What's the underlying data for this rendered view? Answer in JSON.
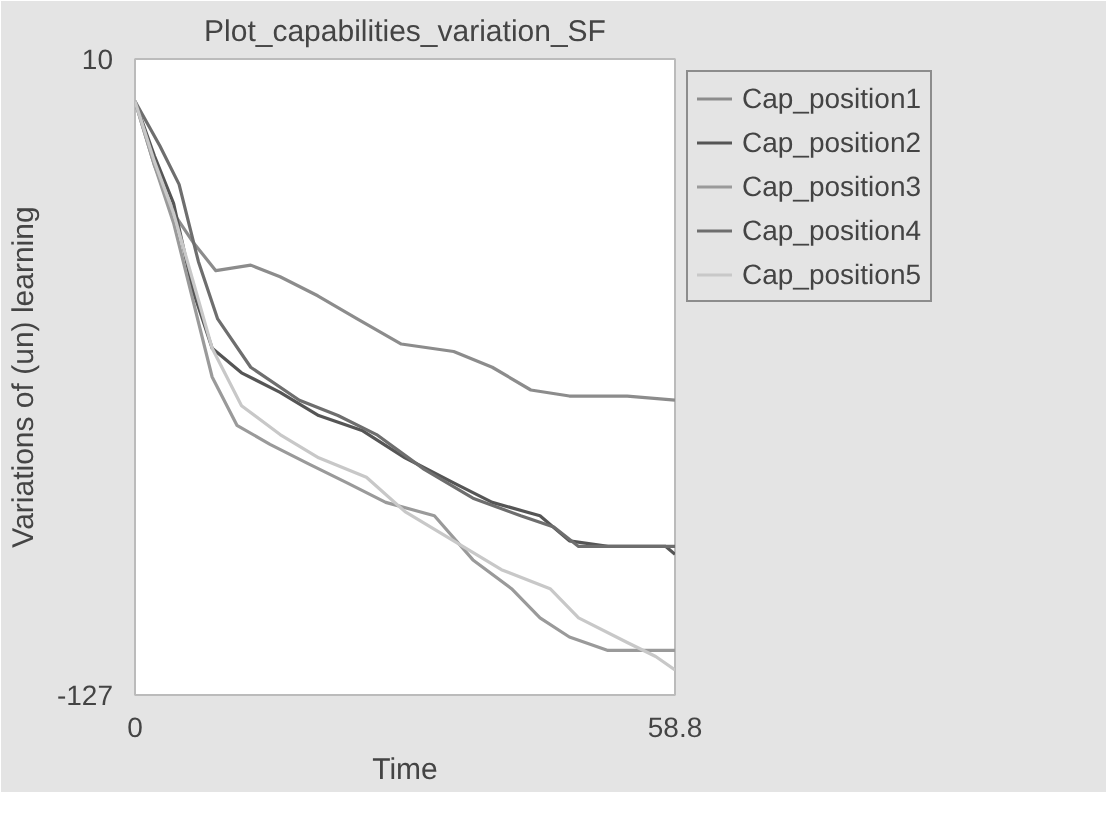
{
  "chart_data": {
    "type": "line",
    "title": "Plot_capabilities_variation_SF",
    "xlabel": "Time",
    "ylabel": "Variations of (un) learning",
    "xlim": [
      0,
      58.8
    ],
    "xticks": [
      0,
      58.8
    ],
    "ylim": [
      -127,
      10
    ],
    "yticks": [
      10,
      -127
    ],
    "legend": "right",
    "line_style": "solid",
    "marker": "none",
    "series": [
      {
        "name": "Cap_position1",
        "color": "#8c8c8c",
        "x": [
          0,
          2.1,
          4.2,
          6.3,
          8.8,
          12.6,
          15.8,
          19.9,
          24.2,
          29.0,
          34.7,
          38.9,
          43.1,
          47.3,
          53.6,
          58.8
        ],
        "values": [
          0.9,
          -12.8,
          -23.2,
          -29.4,
          -35.6,
          -34.4,
          -36.9,
          -41.0,
          -46.0,
          -51.4,
          -53.0,
          -56.4,
          -61.3,
          -62.6,
          -62.6,
          -63.5
        ]
      },
      {
        "name": "Cap_position2",
        "color": "#555555",
        "x": [
          0,
          2.1,
          4.2,
          6.3,
          8.4,
          11.6,
          15.8,
          20.0,
          24.8,
          29.4,
          34.7,
          38.9,
          44.1,
          47.3,
          51.5,
          57.8,
          58.8
        ],
        "values": [
          0.9,
          -10.8,
          -21.1,
          -39.8,
          -52.3,
          -57.6,
          -61.8,
          -66.8,
          -70.1,
          -75.9,
          -81.3,
          -85.5,
          -88.4,
          -93.8,
          -95.0,
          -95.0,
          -96.7
        ]
      },
      {
        "name": "Cap_position3",
        "color": "#9a9a9a",
        "x": [
          0,
          2.1,
          4.2,
          6.3,
          8.4,
          11.1,
          14.7,
          18.9,
          23.1,
          27.3,
          32.6,
          36.8,
          41.0,
          44.1,
          47.3,
          51.5,
          56.7,
          58.8
        ],
        "values": [
          0.9,
          -12.8,
          -25.3,
          -41.9,
          -58.5,
          -68.9,
          -73.0,
          -77.2,
          -81.3,
          -85.5,
          -88.4,
          -97.9,
          -104.1,
          -110.4,
          -114.5,
          -117.4,
          -117.4,
          -117.4
        ]
      },
      {
        "name": "Cap_position4",
        "color": "#6e6e6e",
        "x": [
          0,
          2.7,
          4.8,
          6.9,
          9.0,
          12.6,
          17.9,
          22.1,
          26.3,
          31.5,
          36.8,
          42.0,
          45.6,
          48.3,
          55.7,
          58.8
        ],
        "values": [
          0.9,
          -8.7,
          -17.0,
          -33.6,
          -46.0,
          -56.4,
          -63.5,
          -66.8,
          -70.9,
          -78.4,
          -84.6,
          -88.4,
          -90.8,
          -95.0,
          -95.0,
          -95.0
        ]
      },
      {
        "name": "Cap_position5",
        "color": "#c8c8c8",
        "x": [
          0,
          2.1,
          4.2,
          6.3,
          8.4,
          11.6,
          15.8,
          20.0,
          25.2,
          29.4,
          34.7,
          39.9,
          45.2,
          48.3,
          53.6,
          56.7,
          58.8
        ],
        "values": [
          0.9,
          -12.0,
          -23.2,
          -37.7,
          -52.3,
          -64.7,
          -70.9,
          -75.9,
          -80.1,
          -87.5,
          -93.8,
          -100.0,
          -104.1,
          -110.4,
          -115.7,
          -118.7,
          -121.6
        ]
      }
    ]
  }
}
